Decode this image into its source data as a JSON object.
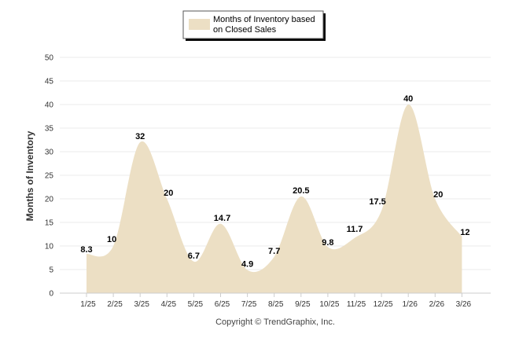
{
  "chart_data": {
    "type": "area",
    "title": "",
    "xlabel": "",
    "ylabel": "Months of Inventory",
    "ylim": [
      0,
      50
    ],
    "yticks": [
      0,
      5,
      10,
      15,
      20,
      25,
      30,
      35,
      40,
      45,
      50
    ],
    "grid": true,
    "legend_position": "top-center",
    "categories": [
      "1/25",
      "2/25",
      "3/25",
      "4/25",
      "5/25",
      "6/25",
      "7/25",
      "8/25",
      "9/25",
      "10/25",
      "11/25",
      "12/25",
      "1/26",
      "2/26",
      "3/26"
    ],
    "series": [
      {
        "name": "Months of Inventory based on Closed Sales",
        "legend_lines": [
          "Months of Inventory based",
          "on Closed Sales"
        ],
        "color": "#ecdfc4",
        "values": [
          8.3,
          10,
          32,
          20,
          6.7,
          14.7,
          4.9,
          7.7,
          20.5,
          9.8,
          11.7,
          17.5,
          40,
          20,
          12
        ],
        "labels": [
          "8.3",
          "10",
          "32",
          "20",
          "6.7",
          "14.7",
          "4.9",
          "7.7",
          "20.5",
          "9.8",
          "11.7",
          "17.5",
          "40",
          "20",
          "12"
        ]
      }
    ],
    "credit": "Copyright © TrendGraphix, Inc."
  }
}
